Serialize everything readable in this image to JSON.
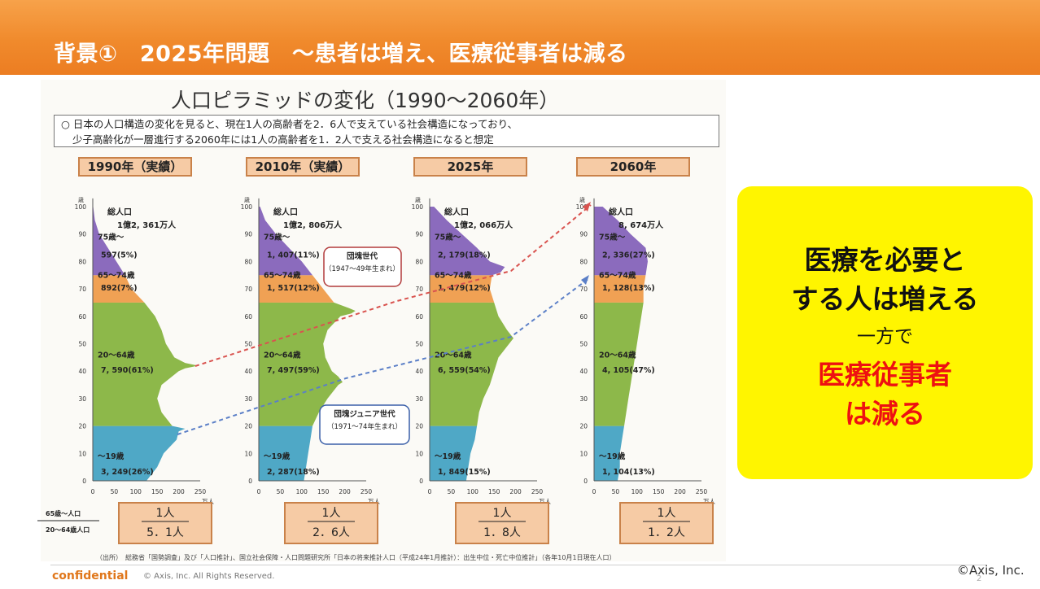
{
  "header": {
    "title": "背景①　2025年問題　～患者は増え、医療従事者は減る"
  },
  "figure": {
    "title": "人口ピラミッドの変化（1990～2060年）",
    "note_line1": "○ 日本の人口構造の変化を見ると、現在1人の高齢者を2．6人で支えている社会構造になっており、",
    "note_line2": "少子高齢化が一層進行する2060年には1人の高齢者を1．2人で支える社会構造になると想定",
    "source": "（出所）　総務省「国勢調査」及び「人口推計」、国立社会保障・人口問題研究所「日本の将来推計人口（平成24年1月推計）：出生中位・死亡中位推計」（各年10月1日現在人口）"
  },
  "chart_data": {
    "type": "area",
    "title": "人口ピラミッドの変化（1990～2060年）",
    "x_unit": "万人",
    "y_unit": "歳",
    "x_ticks": [
      0,
      50,
      100,
      150,
      200,
      250
    ],
    "y_ticks": [
      0,
      10,
      20,
      30,
      40,
      50,
      60,
      70,
      80,
      90,
      100
    ],
    "age_groups": [
      {
        "label": "～19歳",
        "color": "#4fa8c6"
      },
      {
        "label": "20～64歳",
        "color": "#8db84a"
      },
      {
        "label": "65～74歳",
        "color": "#f0a154"
      },
      {
        "label": "75歳～",
        "color": "#8b6bbd"
      }
    ],
    "panels": [
      {
        "year": "1990年（実績）",
        "total_label": "総人口",
        "total": "1億2, 361万人",
        "groups": [
          {
            "label": "～19歳",
            "value": "3, 249(26%)"
          },
          {
            "label": "20～64歳",
            "value": "7, 590(61%)"
          },
          {
            "label": "65～74歳",
            "value": "892(7%)"
          },
          {
            "label": "75歳～",
            "value": "597(5%)"
          }
        ],
        "ratio_top": "1人",
        "ratio_bottom": "5．1人",
        "profile": [
          [
            0,
            125
          ],
          [
            5,
            150
          ],
          [
            10,
            165
          ],
          [
            15,
            195
          ],
          [
            18,
            200
          ],
          [
            19,
            215
          ],
          [
            20,
            185
          ],
          [
            25,
            160
          ],
          [
            30,
            150
          ],
          [
            35,
            160
          ],
          [
            40,
            200
          ],
          [
            41,
            215
          ],
          [
            42,
            245
          ],
          [
            43,
            215
          ],
          [
            45,
            190
          ],
          [
            50,
            170
          ],
          [
            55,
            160
          ],
          [
            60,
            145
          ],
          [
            65,
            120
          ],
          [
            70,
            90
          ],
          [
            75,
            75
          ],
          [
            80,
            55
          ],
          [
            85,
            35
          ],
          [
            90,
            15
          ],
          [
            95,
            5
          ],
          [
            100,
            1
          ]
        ]
      },
      {
        "year": "2010年（実績）",
        "total_label": "総人口",
        "total": "1億2, 806万人",
        "groups": [
          {
            "label": "～19歳",
            "value": "2, 287(18%)"
          },
          {
            "label": "20～64歳",
            "value": "7, 497(59%)"
          },
          {
            "label": "65～74歳",
            "value": "1, 517(12%)"
          },
          {
            "label": "75歳～",
            "value": "1, 407(11%)"
          }
        ],
        "ratio_top": "1人",
        "ratio_bottom": "2．6人",
        "profile": [
          [
            0,
            105
          ],
          [
            5,
            110
          ],
          [
            10,
            115
          ],
          [
            15,
            120
          ],
          [
            20,
            125
          ],
          [
            25,
            140
          ],
          [
            30,
            160
          ],
          [
            35,
            185
          ],
          [
            36,
            195
          ],
          [
            38,
            185
          ],
          [
            40,
            170
          ],
          [
            45,
            155
          ],
          [
            50,
            150
          ],
          [
            55,
            160
          ],
          [
            60,
            190
          ],
          [
            61,
            215
          ],
          [
            62,
            225
          ],
          [
            63,
            210
          ],
          [
            65,
            175
          ],
          [
            70,
            150
          ],
          [
            75,
            125
          ],
          [
            80,
            100
          ],
          [
            85,
            70
          ],
          [
            90,
            40
          ],
          [
            95,
            15
          ],
          [
            100,
            3
          ]
        ]
      },
      {
        "year": "2025年",
        "total_label": "総人口",
        "total": "1億2, 066万人",
        "groups": [
          {
            "label": "～19歳",
            "value": "1, 849(15%)"
          },
          {
            "label": "20～64歳",
            "value": "6, 559(54%)"
          },
          {
            "label": "65～74歳",
            "value": "1, 479(12%)"
          },
          {
            "label": "75歳～",
            "value": "2, 179(18%)"
          }
        ],
        "ratio_top": "1人",
        "ratio_bottom": "1．8人",
        "profile": [
          [
            0,
            85
          ],
          [
            5,
            90
          ],
          [
            10,
            95
          ],
          [
            15,
            105
          ],
          [
            20,
            110
          ],
          [
            25,
            115
          ],
          [
            30,
            125
          ],
          [
            35,
            140
          ],
          [
            40,
            150
          ],
          [
            45,
            160
          ],
          [
            50,
            185
          ],
          [
            52,
            195
          ],
          [
            55,
            180
          ],
          [
            60,
            160
          ],
          [
            65,
            150
          ],
          [
            70,
            140
          ],
          [
            75,
            145
          ],
          [
            76,
            165
          ],
          [
            78,
            175
          ],
          [
            80,
            140
          ],
          [
            85,
            110
          ],
          [
            90,
            75
          ],
          [
            95,
            40
          ],
          [
            100,
            10
          ]
        ]
      },
      {
        "year": "2060年",
        "total_label": "総人口",
        "total": "8, 674万人",
        "groups": [
          {
            "label": "～19歳",
            "value": "1, 104(13%)"
          },
          {
            "label": "20～64歳",
            "value": "4, 105(47%)"
          },
          {
            "label": "65～74歳",
            "value": "1, 128(13%)"
          },
          {
            "label": "75歳～",
            "value": "2, 336(27%)"
          }
        ],
        "ratio_top": "1人",
        "ratio_bottom": "1．2人",
        "profile": [
          [
            0,
            55
          ],
          [
            5,
            60
          ],
          [
            10,
            60
          ],
          [
            15,
            65
          ],
          [
            20,
            70
          ],
          [
            25,
            75
          ],
          [
            30,
            80
          ],
          [
            35,
            85
          ],
          [
            40,
            90
          ],
          [
            45,
            95
          ],
          [
            50,
            100
          ],
          [
            55,
            105
          ],
          [
            60,
            110
          ],
          [
            65,
            115
          ],
          [
            70,
            115
          ],
          [
            75,
            120
          ],
          [
            80,
            125
          ],
          [
            85,
            120
          ],
          [
            90,
            85
          ],
          [
            95,
            55
          ],
          [
            100,
            20
          ]
        ]
      }
    ],
    "callouts": [
      {
        "title": "団塊世代",
        "text": "（1947～49年生まれ）"
      },
      {
        "title": "団塊ジュニア世代",
        "text": "（1971～74年生まれ）"
      }
    ],
    "ratio_row_labels": [
      "65歳～人口",
      "20～64歳人口"
    ]
  },
  "callout": {
    "line1": "医療を必要と",
    "line2": "する人は増える",
    "line3": "一方で",
    "line4": "医療従事者",
    "line5": "は減る"
  },
  "footer": {
    "confidential": "confidential",
    "rights": "© Axis, Inc. All Rights Reserved.",
    "copyright": "©Axis, Inc.",
    "page": "2"
  }
}
